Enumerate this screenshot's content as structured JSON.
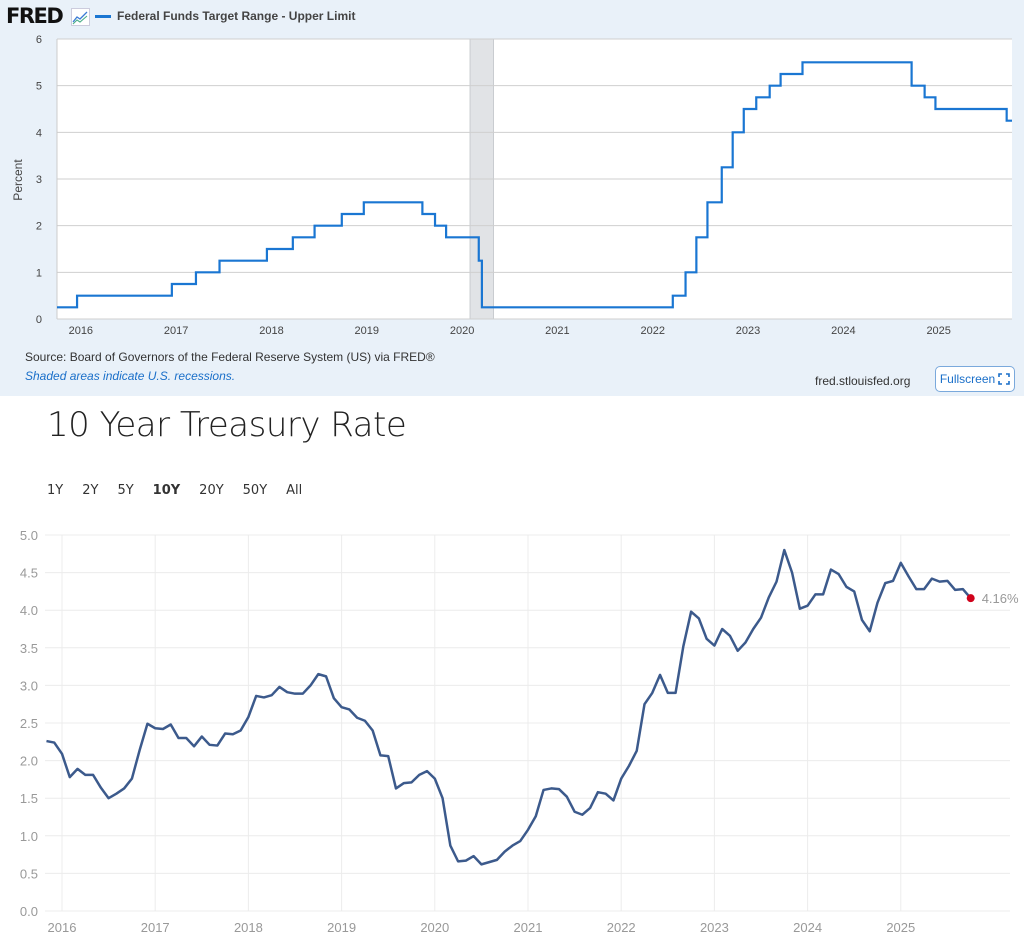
{
  "fred_panel": {
    "logo": "FRED",
    "source": "Source: Board of Governors of the Federal Reserve System (US) via FRED®",
    "recession_note": "Shaded areas indicate U.S. recessions.",
    "site": "fred.stlouisfed.org",
    "fullscreen_label": "Fullscreen"
  },
  "treasury_panel": {
    "title": "10 Year Treasury Rate",
    "ranges": [
      "1Y",
      "2Y",
      "5Y",
      "10Y",
      "20Y",
      "50Y",
      "All"
    ],
    "active_range": "10Y",
    "last_value_label": "4.16%"
  },
  "chart_data": [
    {
      "type": "line",
      "step": true,
      "series": [
        {
          "name": "Federal Funds Target Range - Upper Limit",
          "color": "#1a76d2",
          "points": [
            [
              "2015-10-01",
              0.25
            ],
            [
              "2015-12-17",
              0.5
            ],
            [
              "2016-12-15",
              0.75
            ],
            [
              "2017-03-16",
              1.0
            ],
            [
              "2017-06-15",
              1.25
            ],
            [
              "2017-12-14",
              1.5
            ],
            [
              "2018-03-22",
              1.75
            ],
            [
              "2018-06-14",
              2.0
            ],
            [
              "2018-09-27",
              2.25
            ],
            [
              "2018-12-20",
              2.5
            ],
            [
              "2019-08-01",
              2.25
            ],
            [
              "2019-09-19",
              2.0
            ],
            [
              "2019-10-31",
              1.75
            ],
            [
              "2020-03-04",
              1.25
            ],
            [
              "2020-03-16",
              0.25
            ],
            [
              "2022-03-17",
              0.5
            ],
            [
              "2022-05-05",
              1.0
            ],
            [
              "2022-06-16",
              1.75
            ],
            [
              "2022-07-28",
              2.5
            ],
            [
              "2022-09-22",
              3.25
            ],
            [
              "2022-11-03",
              4.0
            ],
            [
              "2022-12-15",
              4.5
            ],
            [
              "2023-02-02",
              4.75
            ],
            [
              "2023-03-23",
              5.0
            ],
            [
              "2023-05-04",
              5.25
            ],
            [
              "2023-07-27",
              5.5
            ],
            [
              "2024-09-19",
              5.0
            ],
            [
              "2024-11-08",
              4.75
            ],
            [
              "2024-12-19",
              4.5
            ],
            [
              "2025-09-18",
              4.25
            ],
            [
              "2025-10-08",
              4.25
            ]
          ]
        }
      ],
      "recessions": [
        [
          "2020-02-01",
          "2020-04-30"
        ]
      ],
      "ylabel": "Percent",
      "ylim": [
        0,
        6
      ],
      "yticks": [
        0,
        1,
        2,
        3,
        4,
        5,
        6
      ],
      "xticks": [
        "2016",
        "2017",
        "2018",
        "2019",
        "2020",
        "2021",
        "2022",
        "2023",
        "2024",
        "2025"
      ],
      "xlim": [
        "2015-10-01",
        "2025-10-08"
      ],
      "grid": true
    },
    {
      "type": "line",
      "series": [
        {
          "color": "#3c5a8c",
          "points": [
            [
              "2015-11",
              2.26
            ],
            [
              "2015-12",
              2.24
            ],
            [
              "2016-01",
              2.09
            ],
            [
              "2016-02",
              1.78
            ],
            [
              "2016-03",
              1.89
            ],
            [
              "2016-04",
              1.81
            ],
            [
              "2016-05",
              1.81
            ],
            [
              "2016-06",
              1.64
            ],
            [
              "2016-07",
              1.5
            ],
            [
              "2016-08",
              1.56
            ],
            [
              "2016-09",
              1.63
            ],
            [
              "2016-10",
              1.76
            ],
            [
              "2016-11",
              2.14
            ],
            [
              "2016-12",
              2.49
            ],
            [
              "2017-01",
              2.43
            ],
            [
              "2017-02",
              2.42
            ],
            [
              "2017-03",
              2.48
            ],
            [
              "2017-04",
              2.3
            ],
            [
              "2017-05",
              2.3
            ],
            [
              "2017-06",
              2.19
            ],
            [
              "2017-07",
              2.32
            ],
            [
              "2017-08",
              2.21
            ],
            [
              "2017-09",
              2.2
            ],
            [
              "2017-10",
              2.36
            ],
            [
              "2017-11",
              2.35
            ],
            [
              "2017-12",
              2.4
            ],
            [
              "2018-01",
              2.58
            ],
            [
              "2018-02",
              2.86
            ],
            [
              "2018-03",
              2.84
            ],
            [
              "2018-04",
              2.87
            ],
            [
              "2018-05",
              2.98
            ],
            [
              "2018-06",
              2.91
            ],
            [
              "2018-07",
              2.89
            ],
            [
              "2018-08",
              2.89
            ],
            [
              "2018-09",
              3.0
            ],
            [
              "2018-10",
              3.15
            ],
            [
              "2018-11",
              3.12
            ],
            [
              "2018-12",
              2.83
            ],
            [
              "2019-01",
              2.71
            ],
            [
              "2019-02",
              2.68
            ],
            [
              "2019-03",
              2.57
            ],
            [
              "2019-04",
              2.53
            ],
            [
              "2019-05",
              2.4
            ],
            [
              "2019-06",
              2.07
            ],
            [
              "2019-07",
              2.06
            ],
            [
              "2019-08",
              1.63
            ],
            [
              "2019-09",
              1.7
            ],
            [
              "2019-10",
              1.71
            ],
            [
              "2019-11",
              1.81
            ],
            [
              "2019-12",
              1.86
            ],
            [
              "2020-01",
              1.76
            ],
            [
              "2020-02",
              1.5
            ],
            [
              "2020-03",
              0.87
            ],
            [
              "2020-04",
              0.66
            ],
            [
              "2020-05",
              0.67
            ],
            [
              "2020-06",
              0.73
            ],
            [
              "2020-07",
              0.62
            ],
            [
              "2020-08",
              0.65
            ],
            [
              "2020-09",
              0.68
            ],
            [
              "2020-10",
              0.79
            ],
            [
              "2020-11",
              0.87
            ],
            [
              "2020-12",
              0.93
            ],
            [
              "2021-01",
              1.08
            ],
            [
              "2021-02",
              1.26
            ],
            [
              "2021-03",
              1.61
            ],
            [
              "2021-04",
              1.63
            ],
            [
              "2021-05",
              1.62
            ],
            [
              "2021-06",
              1.52
            ],
            [
              "2021-07",
              1.32
            ],
            [
              "2021-08",
              1.28
            ],
            [
              "2021-09",
              1.37
            ],
            [
              "2021-10",
              1.58
            ],
            [
              "2021-11",
              1.56
            ],
            [
              "2021-12",
              1.47
            ],
            [
              "2022-01",
              1.76
            ],
            [
              "2022-02",
              1.93
            ],
            [
              "2022-03",
              2.13
            ],
            [
              "2022-04",
              2.75
            ],
            [
              "2022-05",
              2.9
            ],
            [
              "2022-06",
              3.14
            ],
            [
              "2022-07",
              2.9
            ],
            [
              "2022-08",
              2.9
            ],
            [
              "2022-09",
              3.52
            ],
            [
              "2022-10",
              3.98
            ],
            [
              "2022-11",
              3.89
            ],
            [
              "2022-12",
              3.62
            ],
            [
              "2023-01",
              3.53
            ],
            [
              "2023-02",
              3.75
            ],
            [
              "2023-03",
              3.66
            ],
            [
              "2023-04",
              3.46
            ],
            [
              "2023-05",
              3.57
            ],
            [
              "2023-06",
              3.75
            ],
            [
              "2023-07",
              3.9
            ],
            [
              "2023-08",
              4.17
            ],
            [
              "2023-09",
              4.38
            ],
            [
              "2023-10",
              4.8
            ],
            [
              "2023-11",
              4.5
            ],
            [
              "2023-12",
              4.02
            ],
            [
              "2024-01",
              4.06
            ],
            [
              "2024-02",
              4.21
            ],
            [
              "2024-03",
              4.21
            ],
            [
              "2024-04",
              4.54
            ],
            [
              "2024-05",
              4.48
            ],
            [
              "2024-06",
              4.31
            ],
            [
              "2024-07",
              4.25
            ],
            [
              "2024-08",
              3.87
            ],
            [
              "2024-09",
              3.72
            ],
            [
              "2024-10",
              4.1
            ],
            [
              "2024-11",
              4.36
            ],
            [
              "2024-12",
              4.39
            ],
            [
              "2025-01",
              4.63
            ],
            [
              "2025-02",
              4.45
            ],
            [
              "2025-03",
              4.28
            ],
            [
              "2025-04",
              4.28
            ],
            [
              "2025-05",
              4.42
            ],
            [
              "2025-06",
              4.38
            ],
            [
              "2025-07",
              4.39
            ],
            [
              "2025-08",
              4.27
            ],
            [
              "2025-09",
              4.28
            ],
            [
              "2025-10",
              4.16
            ]
          ]
        }
      ],
      "end_marker_color": "#d0021b",
      "ylim": [
        0,
        5
      ],
      "yticks": [
        "0.0",
        "0.5",
        "1.0",
        "1.5",
        "2.0",
        "2.5",
        "3.0",
        "3.5",
        "4.0",
        "4.5",
        "5.0"
      ],
      "xticks": [
        "2016",
        "2017",
        "2018",
        "2019",
        "2020",
        "2021",
        "2022",
        "2023",
        "2024",
        "2025"
      ],
      "grid": true
    }
  ]
}
